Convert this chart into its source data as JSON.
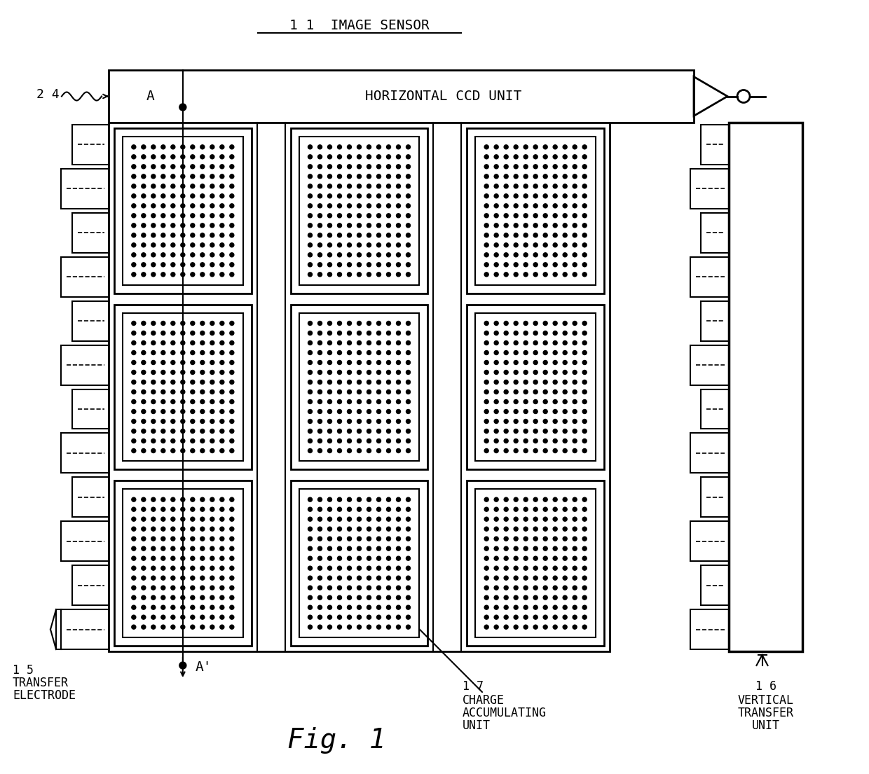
{
  "bg_color": "#ffffff",
  "line_color": "#000000",
  "title_text": "1 1  IMAGE SENSOR",
  "horiz_ccd_text": "HORIZONTAL CCD UNIT",
  "label_24": "2 4",
  "label_A": "A",
  "label_A_prime": "A'",
  "label_15_num": "1 5",
  "label_15a": "TRANSFER",
  "label_15b": "ELECTRODE",
  "label_16_num": "1 6",
  "label_16a": "VERTICAL",
  "label_16b": "TRANSFER",
  "label_16c": "UNIT",
  "label_17_num": "1 7",
  "label_17a": "CHARGE",
  "label_17b": "ACCUMULATING",
  "label_17c": "UNIT",
  "fig_label": "Fig. 1"
}
